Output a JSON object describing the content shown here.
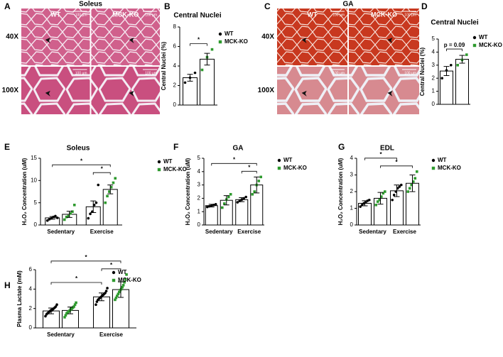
{
  "figures": [
    {
      "panel": "A",
      "title": "Soleus",
      "columns": [
        "WT",
        "MCK-KO"
      ],
      "rows": [
        "40X",
        "100X"
      ],
      "scale_bar": "100 µm"
    },
    {
      "panel": "C",
      "title": "GA",
      "columns": [
        "WT",
        "MCK-KO"
      ],
      "rows": [
        "40X",
        "100X"
      ],
      "scale_bar": "100 µm"
    }
  ],
  "chart_data": [
    {
      "type": "bar",
      "panel": "B",
      "title": "Central Nuclei",
      "y_label": "Central Nuclei (%)",
      "ylim": [
        0,
        8
      ],
      "yticks": [
        0,
        2,
        4,
        6,
        8
      ],
      "series": [
        {
          "name": "WT",
          "color": "#000000",
          "marker": "circle",
          "values": [
            2.8
          ],
          "errors": [
            0.35
          ],
          "points": [
            [
              2.3,
              2.8,
              3.3
            ]
          ]
        },
        {
          "name": "MCK-KO",
          "color": "#2e9a2e",
          "marker": "square",
          "values": [
            4.7
          ],
          "errors": [
            0.6
          ],
          "points": [
            [
              3.6,
              4.9,
              5.7
            ]
          ]
        }
      ],
      "comparisons": [
        {
          "a": [
            "WT"
          ],
          "b": [
            "MCK-KO"
          ],
          "label": "*"
        }
      ]
    },
    {
      "type": "bar",
      "panel": "D",
      "title": "Central Nuclei",
      "y_label": "Central Nuclei (%)",
      "ylim": [
        0,
        5
      ],
      "yticks": [
        0,
        1,
        2,
        3,
        4,
        5
      ],
      "series": [
        {
          "name": "WT",
          "color": "#000000",
          "marker": "circle",
          "values": [
            2.55
          ],
          "errors": [
            0.35
          ],
          "points": [
            [
              2.0,
              2.6,
              3.0
            ]
          ]
        },
        {
          "name": "MCK-KO",
          "color": "#2e9a2e",
          "marker": "square",
          "values": [
            3.45
          ],
          "errors": [
            0.3
          ],
          "points": [
            [
              3.0,
              3.4,
              3.8
            ]
          ]
        }
      ],
      "comparisons": [
        {
          "a": [
            "WT"
          ],
          "b": [
            "MCK-KO"
          ],
          "label": "p = 0.09"
        }
      ]
    },
    {
      "type": "bar",
      "panel": "E",
      "title": "Soleus",
      "y_label": "H₂O₂ Concentration (uM)",
      "categories": [
        "Sedentary",
        "Exercise"
      ],
      "ylim": [
        0,
        15
      ],
      "yticks": [
        0,
        5,
        10,
        15
      ],
      "series": [
        {
          "name": "WT",
          "color": "#000000",
          "marker": "circle",
          "values": [
            1.6,
            4.1
          ],
          "errors": [
            0.3,
            1.3
          ],
          "points": [
            [
              1.0,
              1.3,
              1.5,
              1.8,
              2.0,
              1.6
            ],
            [
              1.5,
              2.5,
              3.0,
              4.5,
              5.0,
              9.0
            ]
          ]
        },
        {
          "name": "MCK-KO",
          "color": "#2e9a2e",
          "marker": "square",
          "values": [
            2.4,
            8.0
          ],
          "errors": [
            0.7,
            1.0
          ],
          "points": [
            [
              1.2,
              1.8,
              2.0,
              2.6,
              3.0,
              4.5
            ],
            [
              5.0,
              6.5,
              7.5,
              8.5,
              9.5,
              10.5
            ]
          ]
        }
      ],
      "comparisons": [
        {
          "a": [
            "WT",
            "Exercise"
          ],
          "b": [
            "MCK-KO",
            "Exercise"
          ],
          "label": "*"
        },
        {
          "a": [
            "WT",
            "Sedentary"
          ],
          "b": [
            "MCK-KO",
            "Exercise"
          ],
          "label": "*"
        }
      ]
    },
    {
      "type": "bar",
      "panel": "F",
      "title": "GA",
      "y_label": "H₂O₂ Concentration (uM)",
      "categories": [
        "Sedentary",
        "Exercise"
      ],
      "ylim": [
        0,
        5
      ],
      "yticks": [
        0,
        1,
        2,
        3,
        4,
        5
      ],
      "series": [
        {
          "name": "WT",
          "color": "#000000",
          "marker": "circle",
          "values": [
            1.45,
            1.9
          ],
          "errors": [
            0.1,
            0.15
          ],
          "points": [
            [
              1.35,
              1.4,
              1.45,
              1.5,
              1.55
            ],
            [
              1.7,
              1.8,
              1.9,
              2.0,
              2.1
            ]
          ]
        },
        {
          "name": "MCK-KO",
          "color": "#2e9a2e",
          "marker": "square",
          "values": [
            1.85,
            3.0
          ],
          "errors": [
            0.35,
            0.6
          ],
          "points": [
            [
              1.3,
              1.6,
              1.9,
              2.1,
              2.3
            ],
            [
              2.3,
              2.5,
              3.0,
              3.3,
              3.6
            ]
          ]
        }
      ],
      "comparisons": [
        {
          "a": [
            "WT",
            "Exercise"
          ],
          "b": [
            "MCK-KO",
            "Exercise"
          ],
          "label": "*"
        },
        {
          "a": [
            "WT",
            "Sedentary"
          ],
          "b": [
            "MCK-KO",
            "Exercise"
          ],
          "label": "*"
        }
      ]
    },
    {
      "type": "bar",
      "panel": "G",
      "title": "EDL",
      "y_label": "H₂O₂ Concentration (uM)",
      "categories": [
        "Sedentary",
        "Exercise"
      ],
      "ylim": [
        0,
        4
      ],
      "yticks": [
        0,
        1,
        2,
        3,
        4
      ],
      "series": [
        {
          "name": "WT",
          "color": "#000000",
          "marker": "circle",
          "values": [
            1.3,
            2.05
          ],
          "errors": [
            0.15,
            0.35
          ],
          "points": [
            [
              1.1,
              1.2,
              1.3,
              1.35,
              1.45,
              1.5
            ],
            [
              1.5,
              1.8,
              2.0,
              2.2,
              2.3,
              2.4
            ]
          ]
        },
        {
          "name": "MCK-KO",
          "color": "#2e9a2e",
          "marker": "square",
          "values": [
            1.6,
            2.5
          ],
          "errors": [
            0.35,
            0.5
          ],
          "points": [
            [
              1.2,
              1.4,
              1.5,
              1.7,
              1.9,
              2.0
            ],
            [
              2.0,
              2.2,
              2.4,
              2.6,
              2.8,
              3.2
            ]
          ]
        }
      ],
      "comparisons": [
        {
          "a": [
            "MCK-KO",
            "Sedentary"
          ],
          "b": [
            "MCK-KO",
            "Exercise"
          ],
          "label": "*"
        },
        {
          "a": [
            "WT",
            "Sedentary"
          ],
          "b": [
            "WT",
            "Exercise"
          ],
          "label": "*"
        }
      ]
    },
    {
      "type": "bar",
      "panel": "H",
      "y_label": "Plasma Lactate (mM)",
      "categories": [
        "Sedentary",
        "Exercise"
      ],
      "ylim": [
        0,
        6
      ],
      "yticks": [
        0,
        2,
        4,
        6
      ],
      "series": [
        {
          "name": "WT",
          "color": "#000000",
          "marker": "circle",
          "values": [
            1.75,
            3.2
          ],
          "errors": [
            0.3,
            0.4
          ],
          "points": [
            [
              1.2,
              1.4,
              1.5,
              1.6,
              1.7,
              1.8,
              1.8,
              1.9,
              2.0,
              2.1,
              2.2,
              2.4
            ],
            [
              2.4,
              2.7,
              2.9,
              3.0,
              3.1,
              3.2,
              3.3,
              3.4,
              3.5,
              3.6,
              3.8,
              4.1
            ]
          ]
        },
        {
          "name": "MCK-KO",
          "color": "#2e9a2e",
          "marker": "square",
          "values": [
            1.8,
            3.95
          ],
          "errors": [
            0.35,
            0.8
          ],
          "points": [
            [
              1.1,
              1.3,
              1.5,
              1.6,
              1.7,
              1.8,
              1.9,
              2.0,
              2.1,
              2.2,
              2.4,
              2.6
            ],
            [
              2.9,
              3.1,
              3.3,
              3.5,
              3.7,
              3.9,
              4.0,
              4.2,
              4.4,
              4.7,
              5.0,
              5.5
            ]
          ]
        }
      ],
      "comparisons": [
        {
          "a": [
            "WT",
            "Exercise"
          ],
          "b": [
            "MCK-KO",
            "Exercise"
          ],
          "label": "*"
        },
        {
          "a": [
            "WT",
            "Sedentary"
          ],
          "b": [
            "WT",
            "Exercise"
          ],
          "label": "*"
        },
        {
          "a": [
            "WT",
            "Sedentary"
          ],
          "b": [
            "MCK-KO",
            "Exercise"
          ],
          "label": "*"
        }
      ]
    }
  ]
}
